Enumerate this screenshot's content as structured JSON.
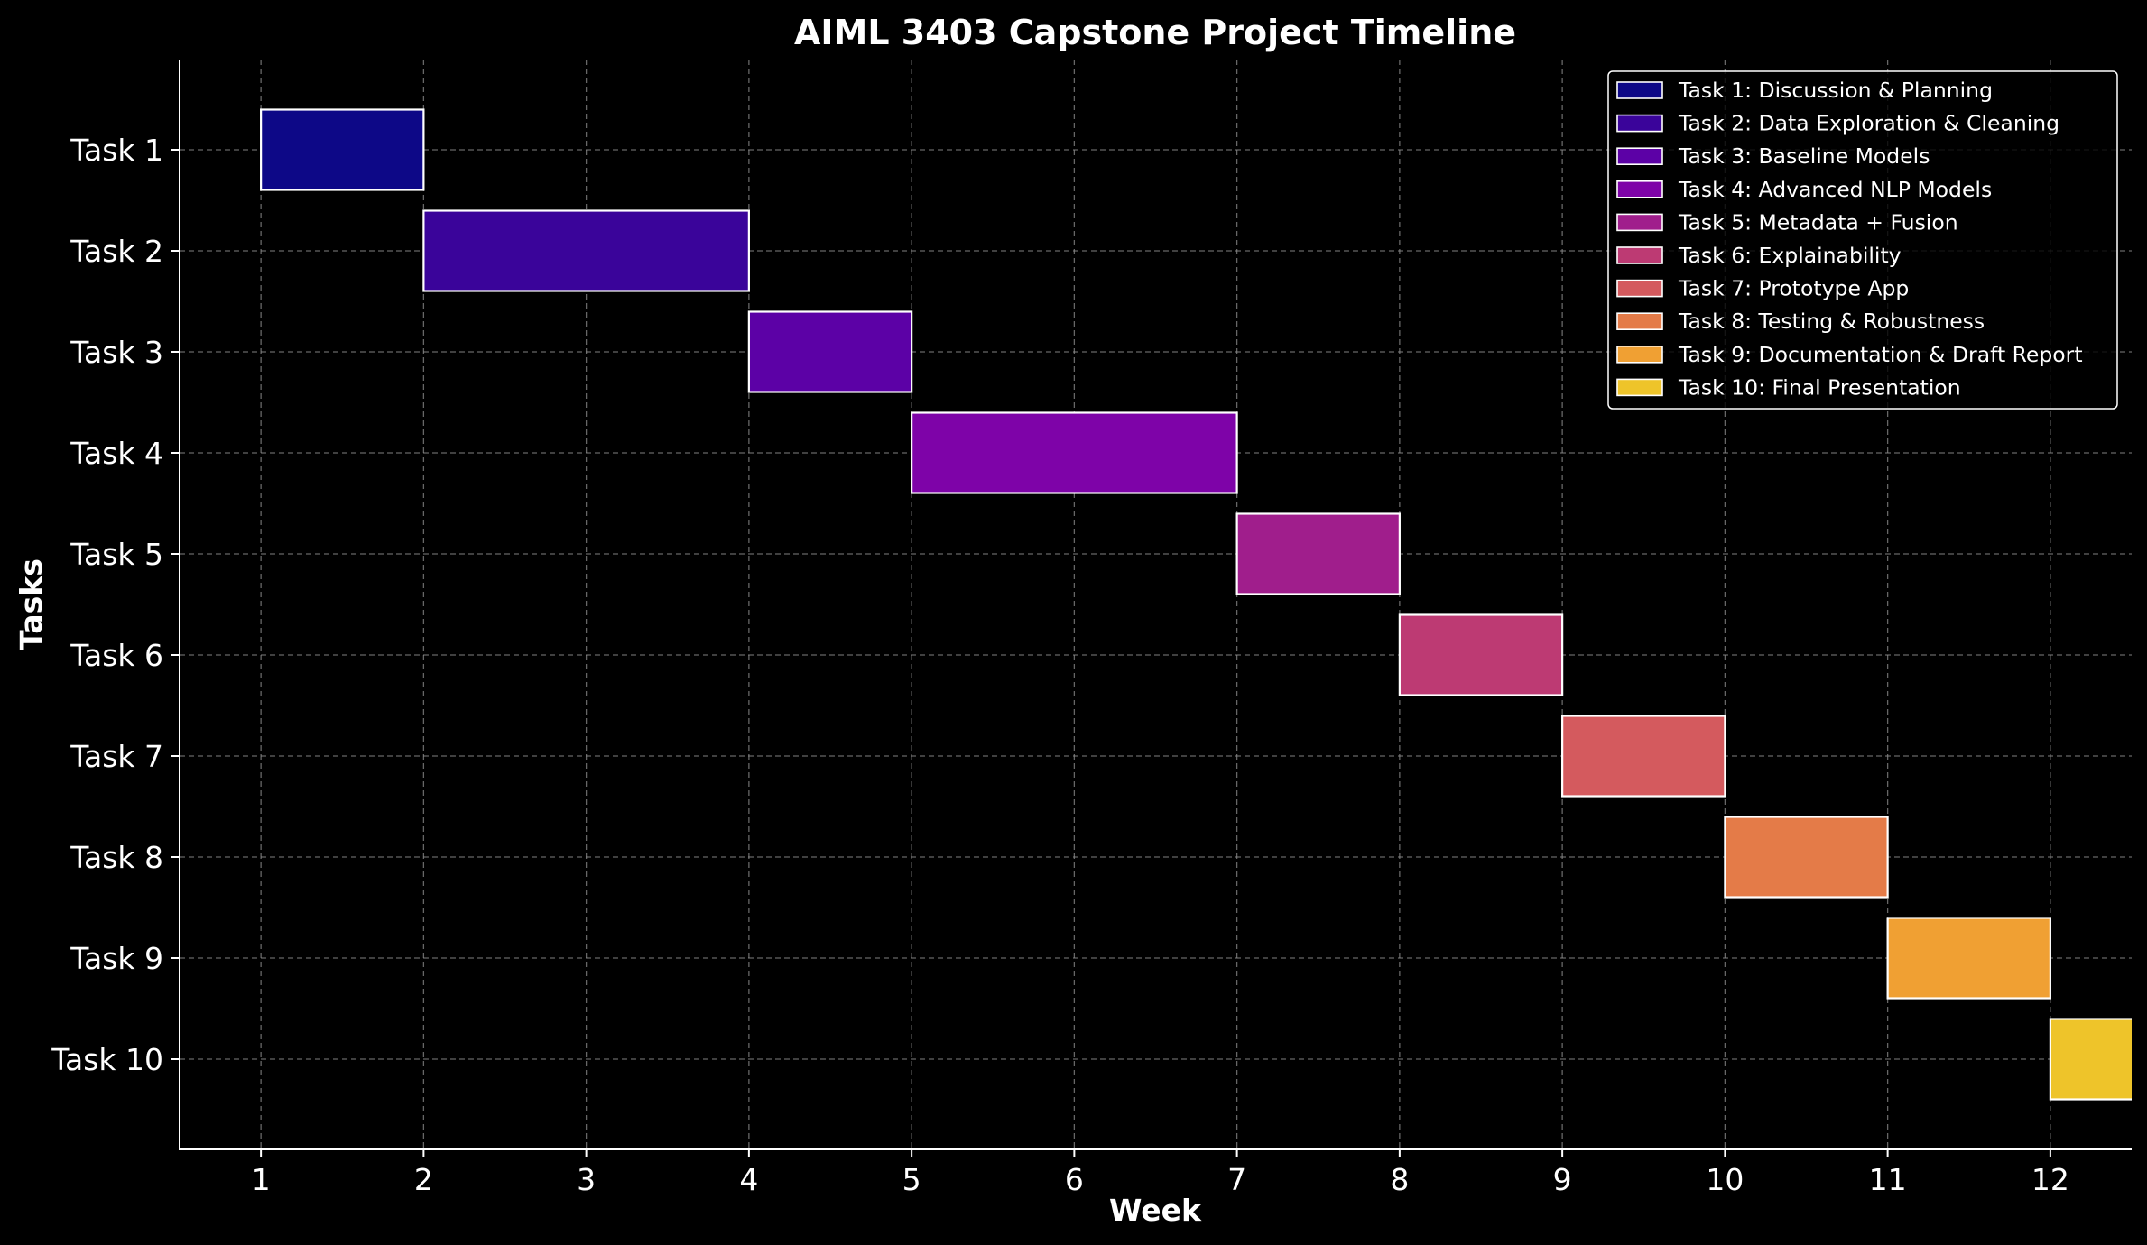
{
  "chart_data": {
    "type": "bar",
    "orientation": "horizontal",
    "title": "AIML 3403 Capstone Project Timeline",
    "xlabel": "Week",
    "ylabel": "Tasks",
    "xlim": [
      0.5,
      12.5
    ],
    "x_ticks": [
      "1",
      "2",
      "3",
      "4",
      "5",
      "6",
      "7",
      "8",
      "9",
      "10",
      "11",
      "12"
    ],
    "categories": [
      "Task 1",
      "Task 2",
      "Task 3",
      "Task 4",
      "Task 5",
      "Task 6",
      "Task 7",
      "Task 8",
      "Task 9",
      "Task 10"
    ],
    "grid": true,
    "legend_position": "top-right",
    "series": [
      {
        "category": "Task 1",
        "name": "Task 1: Discussion & Planning",
        "start": 1,
        "end": 2,
        "color": "#0d0887"
      },
      {
        "category": "Task 2",
        "name": "Task 2: Data Exploration & Cleaning",
        "start": 2,
        "end": 4,
        "color": "#3a049a"
      },
      {
        "category": "Task 3",
        "name": "Task 3: Baseline Models",
        "start": 4,
        "end": 5,
        "color": "#5c01a6"
      },
      {
        "category": "Task 4",
        "name": "Task 4: Advanced NLP Models",
        "start": 5,
        "end": 7,
        "color": "#7e03a8"
      },
      {
        "category": "Task 5",
        "name": "Task 5: Metadata + Fusion",
        "start": 7,
        "end": 8,
        "color": "#a01e8c"
      },
      {
        "category": "Task 6",
        "name": "Task 6: Explainability",
        "start": 8,
        "end": 9,
        "color": "#bd3a73"
      },
      {
        "category": "Task 7",
        "name": "Task 7: Prototype App",
        "start": 9,
        "end": 10,
        "color": "#d45a5e"
      },
      {
        "category": "Task 8",
        "name": "Task 8: Testing & Robustness",
        "start": 10,
        "end": 11,
        "color": "#e47b48"
      },
      {
        "category": "Task 9",
        "name": "Task 9: Documentation & Draft Report",
        "start": 11,
        "end": 12,
        "color": "#f0a033"
      },
      {
        "category": "Task 10",
        "name": "Task 10: Final Presentation",
        "start": 12,
        "end": 13,
        "color": "#eec42a"
      }
    ]
  }
}
